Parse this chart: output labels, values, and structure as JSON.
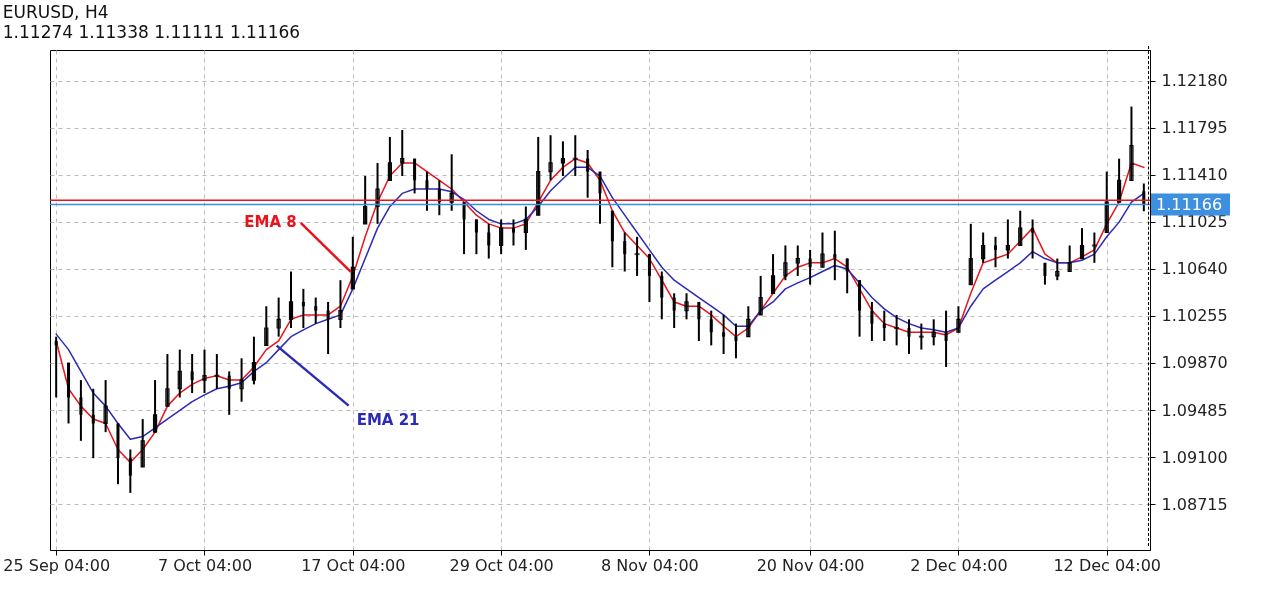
{
  "chart_data": {
    "type": "candlestick",
    "title": "EURUSD, H4",
    "subtitle": "1.11274 1.11338 1.11111 1.11166",
    "categories": [
      "25 Sep 04:00",
      null,
      null,
      null,
      null,
      null,
      null,
      null,
      null,
      null,
      null,
      null,
      "7 Oct 04:00",
      null,
      null,
      null,
      null,
      null,
      null,
      null,
      null,
      null,
      null,
      null,
      "17 Oct 04:00",
      null,
      null,
      null,
      null,
      null,
      null,
      null,
      null,
      null,
      null,
      null,
      "29 Oct 04:00",
      null,
      null,
      null,
      null,
      null,
      null,
      null,
      null,
      null,
      null,
      null,
      "8 Nov 04:00",
      null,
      null,
      null,
      null,
      null,
      null,
      null,
      null,
      null,
      null,
      null,
      null,
      "20 Nov 04:00",
      null,
      null,
      null,
      null,
      null,
      null,
      null,
      null,
      null,
      null,
      null,
      "2 Dec 04:00",
      null,
      null,
      null,
      null,
      null,
      null,
      null,
      null,
      null,
      null,
      null,
      "12 Dec 04:00",
      null,
      null,
      null
    ],
    "color": "#000000",
    "ohlc": [
      [
        1.1005,
        1.10085,
        1.09588,
        1.10014
      ],
      [
        1.09872,
        1.09872,
        1.09375,
        1.09588
      ],
      [
        1.09588,
        1.0973,
        1.09233,
        1.09446
      ],
      [
        1.09446,
        1.09659,
        1.09091,
        1.09375
      ],
      [
        1.09375,
        1.0973,
        1.09304,
        1.09517
      ],
      [
        1.09375,
        1.09375,
        1.08878,
        1.09091
      ],
      [
        1.09091,
        1.09162,
        1.08807,
        1.08949
      ],
      [
        1.0902,
        1.09411,
        1.0902,
        1.09233
      ],
      [
        1.09304,
        1.0973,
        1.09304,
        1.09446
      ],
      [
        1.09517,
        1.09943,
        1.09517,
        1.09659
      ],
      [
        1.09659,
        1.09979,
        1.09588,
        1.09801
      ],
      [
        1.09801,
        1.09943,
        1.09624,
        1.0973
      ],
      [
        1.0973,
        1.09979,
        1.09624,
        1.09766
      ],
      [
        1.09766,
        1.09943,
        1.09659,
        1.09766
      ],
      [
        1.09766,
        1.09801,
        1.09446,
        1.09659
      ],
      [
        1.09659,
        1.09908,
        1.09553,
        1.0973
      ],
      [
        1.0973,
        1.10085,
        1.09695,
        1.09872
      ],
      [
        1.10014,
        1.10334,
        1.10014,
        1.10156
      ],
      [
        1.10156,
        1.10405,
        1.10085,
        1.10227
      ],
      [
        1.10227,
        1.10618,
        1.10156,
        1.10369
      ],
      [
        1.10369,
        1.10476,
        1.10156,
        1.10334
      ],
      [
        1.10334,
        1.10405,
        1.10192,
        1.10298
      ],
      [
        1.10298,
        1.10369,
        1.09943,
        1.10227
      ],
      [
        1.10227,
        1.10547,
        1.10156,
        1.10298
      ],
      [
        1.10476,
        1.10902,
        1.10476,
        1.10653
      ],
      [
        1.11008,
        1.11399,
        1.11008,
        1.1115
      ],
      [
        1.1115,
        1.11506,
        1.11008,
        1.11293
      ],
      [
        1.11364,
        1.11719,
        1.11364,
        1.11506
      ],
      [
        1.11506,
        1.11775,
        1.11399,
        1.11541
      ],
      [
        1.11541,
        1.11541,
        1.11257,
        1.11364
      ],
      [
        1.11364,
        1.11435,
        1.11115,
        1.11293
      ],
      [
        1.11293,
        1.11364,
        1.11079,
        1.11186
      ],
      [
        1.11186,
        1.11577,
        1.11115,
        1.11257
      ],
      [
        1.11186,
        1.11186,
        1.1076,
        1.11044
      ],
      [
        1.11044,
        1.11044,
        1.1076,
        1.10937
      ],
      [
        1.10937,
        1.11008,
        1.10724,
        1.10831
      ],
      [
        1.10831,
        1.11044,
        1.1076,
        1.10973
      ],
      [
        1.10973,
        1.11044,
        1.10831,
        1.10937
      ],
      [
        1.10937,
        1.1115,
        1.10795,
        1.11044
      ],
      [
        1.11079,
        1.11719,
        1.11079,
        1.11435
      ],
      [
        1.11435,
        1.11733,
        1.11364,
        1.11506
      ],
      [
        1.11506,
        1.11683,
        1.11399,
        1.11541
      ],
      [
        1.11541,
        1.11733,
        1.11399,
        1.11541
      ],
      [
        1.11541,
        1.11612,
        1.11222,
        1.11435
      ],
      [
        1.11435,
        1.11435,
        1.11008,
        1.11257
      ],
      [
        1.11115,
        1.11115,
        1.10653,
        1.10866
      ],
      [
        1.10866,
        1.10937,
        1.10618,
        1.1076
      ],
      [
        1.1076,
        1.10902,
        1.10582,
        1.1076
      ],
      [
        1.1076,
        1.1076,
        1.10369,
        1.10582
      ],
      [
        1.10582,
        1.10618,
        1.10227,
        1.10405
      ],
      [
        1.10405,
        1.1044,
        1.10156,
        1.10298
      ],
      [
        1.10298,
        1.1044,
        1.10227,
        1.10369
      ],
      [
        1.10369,
        1.10369,
        1.1005,
        1.10227
      ],
      [
        1.10227,
        1.10298,
        1.10014,
        1.10121
      ],
      [
        1.10121,
        1.10263,
        1.09943,
        1.10085
      ],
      [
        1.10085,
        1.10192,
        1.09908,
        1.1005
      ],
      [
        1.10085,
        1.10334,
        1.10085,
        1.10227
      ],
      [
        1.10263,
        1.10582,
        1.10263,
        1.10405
      ],
      [
        1.1044,
        1.1076,
        1.1044,
        1.10582
      ],
      [
        1.10582,
        1.10831,
        1.10547,
        1.10689
      ],
      [
        1.10689,
        1.10831,
        1.10582,
        1.10724
      ],
      [
        1.10724,
        1.10795,
        1.10511,
        1.10653
      ],
      [
        1.10653,
        1.10937,
        1.10653,
        1.1076
      ],
      [
        1.1076,
        1.10952,
        1.10547,
        1.10724
      ],
      [
        1.10724,
        1.10724,
        1.1044,
        1.10618
      ],
      [
        1.10547,
        1.10547,
        1.10085,
        1.10298
      ],
      [
        1.10298,
        1.10369,
        1.1005,
        1.10192
      ],
      [
        1.10192,
        1.10298,
        1.1005,
        1.10156
      ],
      [
        1.10156,
        1.10263,
        1.10014,
        1.10156
      ],
      [
        1.10156,
        1.10227,
        1.09943,
        1.10085
      ],
      [
        1.10085,
        1.10192,
        1.09979,
        1.10085
      ],
      [
        1.10085,
        1.10227,
        1.10014,
        1.10121
      ],
      [
        1.10121,
        1.10298,
        1.09837,
        1.1005
      ],
      [
        1.10121,
        1.10334,
        1.10121,
        1.10227
      ],
      [
        1.10511,
        1.11008,
        1.10511,
        1.10724
      ],
      [
        1.10724,
        1.10937,
        1.10689,
        1.10831
      ],
      [
        1.10831,
        1.10902,
        1.10653,
        1.10795
      ],
      [
        1.10795,
        1.11044,
        1.10724,
        1.10831
      ],
      [
        1.10831,
        1.11115,
        1.10831,
        1.10973
      ],
      [
        1.10973,
        1.11044,
        1.10724,
        1.10937
      ],
      [
        1.10689,
        1.10689,
        1.10511,
        1.10582
      ],
      [
        1.10582,
        1.10724,
        1.10547,
        1.10618
      ],
      [
        1.10618,
        1.10831,
        1.10618,
        1.10689
      ],
      [
        1.10724,
        1.10973,
        1.10724,
        1.10831
      ],
      [
        1.10831,
        1.10937,
        1.10689,
        1.10831
      ],
      [
        1.10937,
        1.11435,
        1.10937,
        1.11186
      ],
      [
        1.11186,
        1.11541,
        1.11186,
        1.11364
      ],
      [
        1.11364,
        1.11967,
        1.11364,
        1.11648
      ],
      [
        1.11274,
        1.11338,
        1.11111,
        1.11166
      ]
    ],
    "series": [
      {
        "name": "EMA 8",
        "type": "line",
        "color": "#e8141b",
        "values": [
          1.1005,
          1.09659,
          1.09517,
          1.09411,
          1.09375,
          1.09162,
          1.09055,
          1.09162,
          1.09304,
          1.09517,
          1.09624,
          1.09695,
          1.09744,
          1.09766,
          1.0973,
          1.0973,
          1.09837,
          1.09979,
          1.1005,
          1.10227,
          1.10263,
          1.10263,
          1.10263,
          1.10334,
          1.10582,
          1.10902,
          1.11186,
          1.11399,
          1.11506,
          1.11506,
          1.11435,
          1.11364,
          1.11293,
          1.11186,
          1.11079,
          1.11008,
          1.10973,
          1.10973,
          1.11008,
          1.11186,
          1.11364,
          1.1147,
          1.11541,
          1.11506,
          1.11364,
          1.11115,
          1.10937,
          1.10831,
          1.10724,
          1.10547,
          1.10369,
          1.10334,
          1.10334,
          1.10263,
          1.1017,
          1.10085,
          1.10156,
          1.10298,
          1.1044,
          1.10582,
          1.10653,
          1.10689,
          1.10689,
          1.10724,
          1.10653,
          1.10476,
          1.10298,
          1.10192,
          1.10156,
          1.10121,
          1.10121,
          1.10121,
          1.10099,
          1.10156,
          1.1044,
          1.10689,
          1.10724,
          1.1076,
          1.10866,
          1.10973,
          1.1076,
          1.10689,
          1.10689,
          1.10738,
          1.10795,
          1.11008,
          1.11186,
          1.11506,
          1.1147
        ]
      },
      {
        "name": "EMA 21",
        "type": "line",
        "color": "#2b2bb5",
        "values": [
          1.10106,
          1.09979,
          1.09801,
          1.09624,
          1.09517,
          1.09375,
          1.09246,
          1.09268,
          1.09339,
          1.09411,
          1.09482,
          1.09553,
          1.09609,
          1.09659,
          1.0968,
          1.09708,
          1.09801,
          1.09872,
          1.09979,
          1.10085,
          1.10141,
          1.10192,
          1.10227,
          1.10263,
          1.10476,
          1.10724,
          1.10973,
          1.1115,
          1.11257,
          1.11293,
          1.11293,
          1.11293,
          1.11271,
          1.11207,
          1.11115,
          1.11044,
          1.11008,
          1.11008,
          1.11044,
          1.1115,
          1.11278,
          1.11377,
          1.1147,
          1.1147,
          1.11399,
          1.11222,
          1.11079,
          1.10937,
          1.10795,
          1.10653,
          1.10547,
          1.10476,
          1.10405,
          1.10334,
          1.10263,
          1.1017,
          1.1017,
          1.10298,
          1.10369,
          1.10476,
          1.10525,
          1.10568,
          1.10618,
          1.10667,
          1.10638,
          1.10525,
          1.10405,
          1.10312,
          1.10241,
          1.10192,
          1.10156,
          1.10141,
          1.10121,
          1.10156,
          1.10334,
          1.10476,
          1.10547,
          1.10618,
          1.10689,
          1.10781,
          1.10724,
          1.10689,
          1.10689,
          1.1071,
          1.1076,
          1.10902,
          1.11022,
          1.11186,
          1.11257
        ]
      }
    ],
    "ylim": [
      1.0834,
      1.1243
    ],
    "yticks": [
      {
        "value": 1.08715,
        "label": "1.08715"
      },
      {
        "value": 1.091,
        "label": "1.09100"
      },
      {
        "value": 1.09485,
        "label": "1.09485"
      },
      {
        "value": 1.0987,
        "label": "1.09870"
      },
      {
        "value": 1.10255,
        "label": "1.10255"
      },
      {
        "value": 1.1064,
        "label": "1.10640"
      },
      {
        "value": 1.11025,
        "label": "1.11025"
      },
      {
        "value": 1.1141,
        "label": "1.11410"
      },
      {
        "value": 1.11795,
        "label": "1.11795"
      },
      {
        "value": 1.1218,
        "label": "1.12180"
      }
    ],
    "grid": true,
    "ref_lines": [
      {
        "axis": "y",
        "value": 1.112,
        "color": "#e8141b"
      },
      {
        "axis": "y",
        "value": 1.11166,
        "label": "1.11166",
        "color": "#3d8fe0"
      }
    ]
  }
}
